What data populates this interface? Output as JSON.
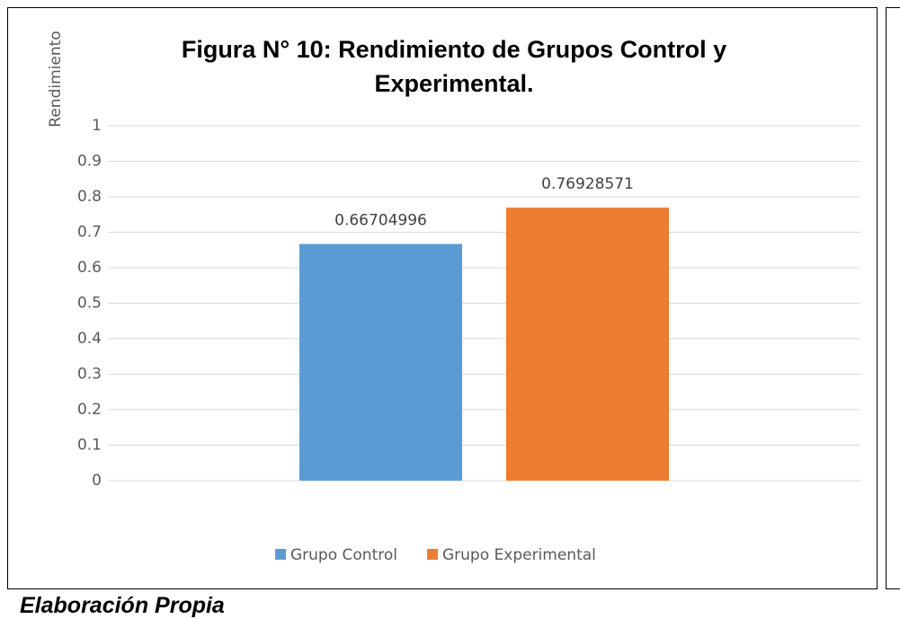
{
  "chart_data": {
    "type": "bar",
    "title": "Figura N° 10: Rendimiento de Grupos Control y Experimental.",
    "y_label": "Rendimiento",
    "categories": [
      null
    ],
    "series": [
      {
        "name": "Grupo Control",
        "color": "#5b9bd5",
        "values": [
          0.66704996
        ]
      },
      {
        "name": "Grupo Experimental",
        "color": "#ed7d31",
        "values": [
          0.76928571
        ]
      }
    ],
    "ylim": [
      0,
      1
    ],
    "yticks": [
      0,
      0.1,
      0.2,
      0.3,
      0.4,
      0.5,
      0.6,
      0.7,
      0.8,
      0.9,
      1
    ],
    "grid": true,
    "legend": "bottom"
  },
  "caption": "Elaboración Propia"
}
